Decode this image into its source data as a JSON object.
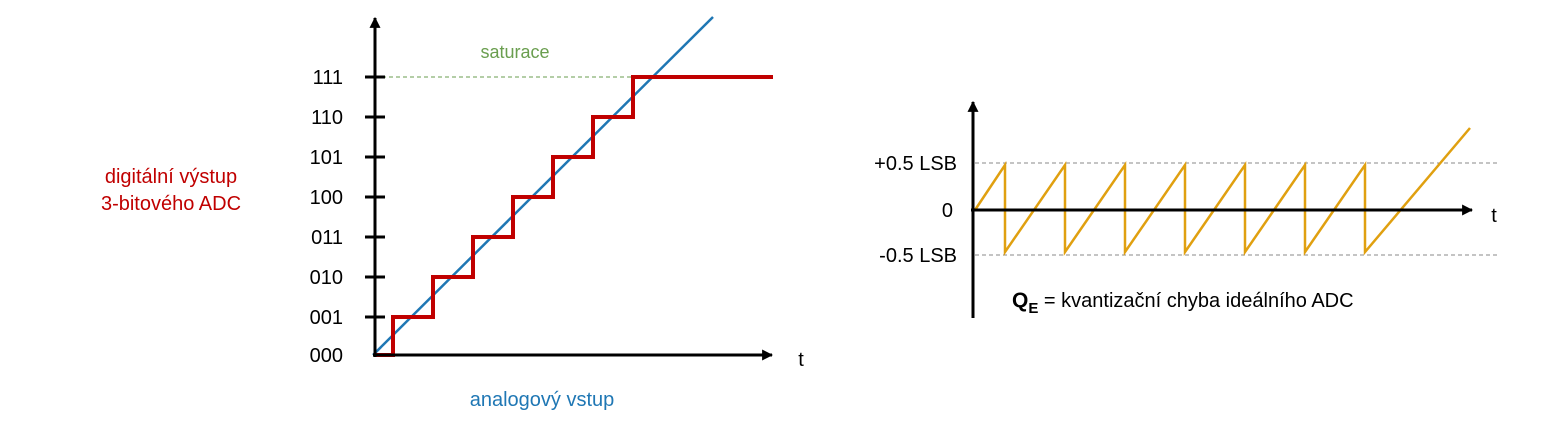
{
  "adc": {
    "y_ticks": [
      "000",
      "001",
      "010",
      "011",
      "100",
      "101",
      "110",
      "111"
    ],
    "x_axis_label": "t",
    "saturation_label": "saturace",
    "output_label_line1": "digitální výstup",
    "output_label_line2": "3-bitového ADC",
    "input_label": "analogový vstup",
    "colors": {
      "staircase": "#c00000",
      "ramp": "#1f77b4",
      "saturation": "#6a9e4f",
      "axis": "#000000"
    }
  },
  "error": {
    "upper_label": "+0.5 LSB",
    "zero_label": "0",
    "lower_label": "-0.5 LSB",
    "x_axis_label": "t",
    "caption_symbol": "Q",
    "caption_subscript": "E",
    "caption_text": " = kvantizační chyba ideálního ADC",
    "sawtooth_teeth": 7,
    "colors": {
      "sawtooth": "#e0a010",
      "guide": "#888888",
      "axis": "#000000"
    }
  }
}
